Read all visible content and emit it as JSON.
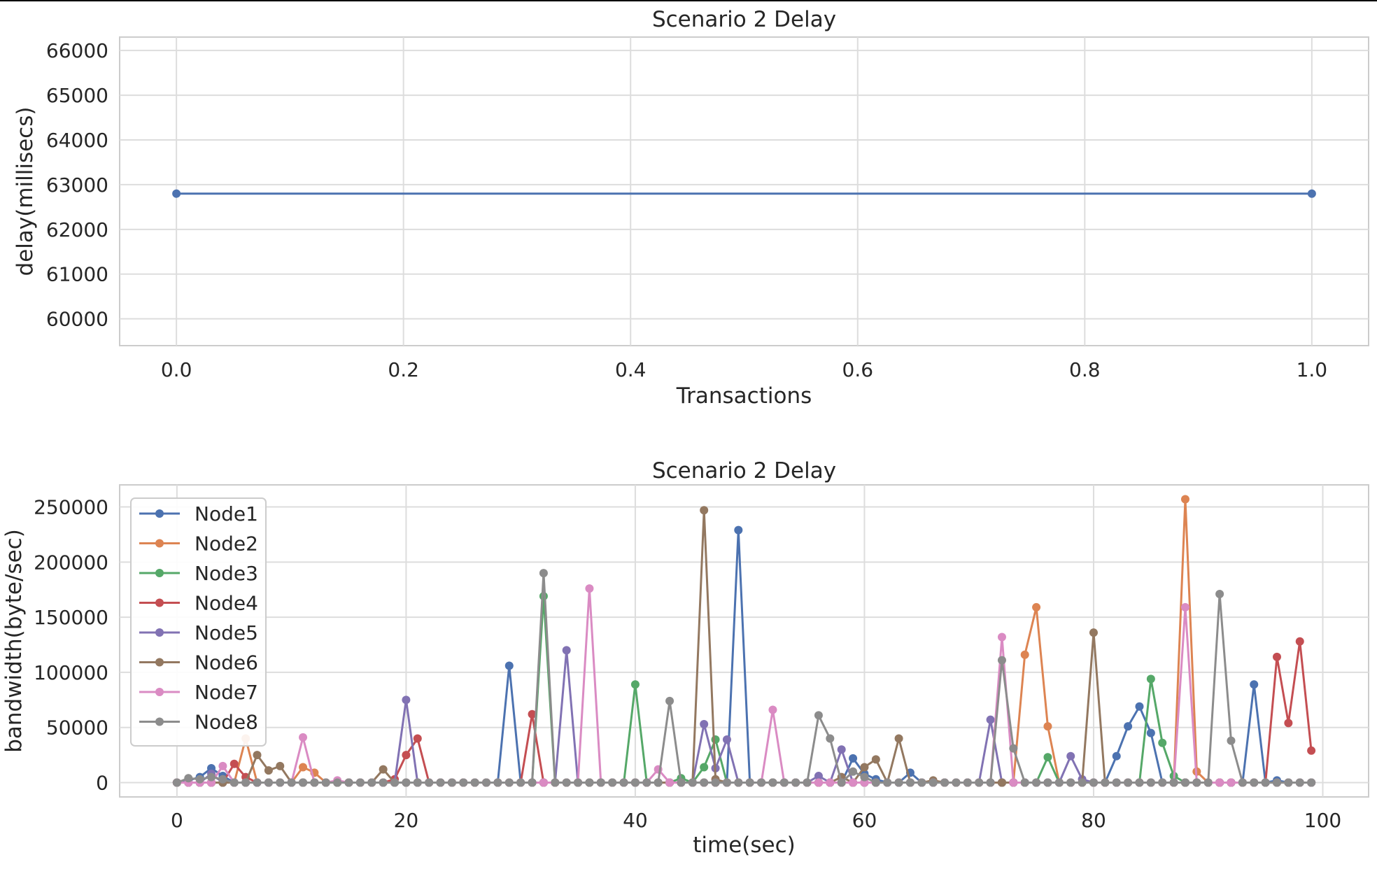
{
  "chart_data": [
    {
      "type": "line",
      "title": "Scenario 2 Delay",
      "xlabel": "Transactions",
      "ylabel": "delay(millisecs)",
      "xlim": [
        -0.05,
        1.05
      ],
      "ylim": [
        59400,
        66300
      ],
      "xticks": [
        0.0,
        0.2,
        0.4,
        0.6,
        0.8,
        1.0
      ],
      "xtick_labels": [
        "0.0",
        "0.2",
        "0.4",
        "0.6",
        "0.8",
        "1.0"
      ],
      "yticks": [
        60000,
        61000,
        62000,
        63000,
        64000,
        65000,
        66000
      ],
      "ytick_labels": [
        "60000",
        "61000",
        "62000",
        "63000",
        "64000",
        "65000",
        "66000"
      ],
      "grid": true,
      "series": [
        {
          "x": [
            0,
            1
          ],
          "values": [
            62800,
            62800
          ],
          "color": "#4c72b0"
        }
      ]
    },
    {
      "type": "line",
      "title": "Scenario 2 Delay",
      "xlabel": "time(sec)",
      "ylabel": "bandwidth(byte/sec)",
      "xlim": [
        -5,
        104
      ],
      "ylim": [
        -13000,
        270000
      ],
      "xticks": [
        0,
        20,
        40,
        60,
        80,
        100
      ],
      "xtick_labels": [
        "0",
        "20",
        "40",
        "60",
        "80",
        "100"
      ],
      "yticks": [
        0,
        50000,
        100000,
        150000,
        200000,
        250000
      ],
      "ytick_labels": [
        "0",
        "50000",
        "100000",
        "150000",
        "200000",
        "250000"
      ],
      "grid": true,
      "legend_position": "top-left",
      "series": [
        {
          "name": "Node1",
          "color": "#4c72b0",
          "peaks": {
            "1": 2000,
            "2": 5000,
            "3": 13000,
            "4": 6000,
            "29": 106000,
            "49": 229000,
            "59": 22000,
            "60": 8000,
            "61": 3000,
            "64": 9000,
            "82": 24000,
            "83": 51000,
            "84": 69000,
            "85": 45000,
            "94": 89000,
            "96": 2000
          }
        },
        {
          "name": "Node2",
          "color": "#dd8452",
          "peaks": {
            "6": 40000,
            "11": 14000,
            "12": 9000,
            "74": 116000,
            "75": 159000,
            "76": 51000,
            "88": 257000,
            "89": 10000
          }
        },
        {
          "name": "Node3",
          "color": "#55a868",
          "peaks": {
            "32": 169000,
            "40": 89000,
            "44": 4000,
            "46": 14000,
            "47": 39000,
            "76": 23000,
            "85": 94000,
            "86": 36000,
            "87": 6000
          }
        },
        {
          "name": "Node4",
          "color": "#c44e52",
          "peaks": {
            "5": 17000,
            "6": 5000,
            "19": 3000,
            "20": 25000,
            "21": 40000,
            "31": 62000,
            "96": 114000,
            "97": 54000,
            "98": 128000,
            "99": 29000
          }
        },
        {
          "name": "Node5",
          "color": "#8172b3",
          "peaks": {
            "3": 8000,
            "20": 75000,
            "34": 120000,
            "46": 53000,
            "47": 13000,
            "48": 39000,
            "56": 6000,
            "58": 30000,
            "71": 57000,
            "78": 24000,
            "79": 3000
          }
        },
        {
          "name": "Node6",
          "color": "#937860",
          "peaks": {
            "7": 25000,
            "8": 11000,
            "9": 15000,
            "18": 12000,
            "46": 247000,
            "47": 3000,
            "58": 5000,
            "60": 14000,
            "61": 21000,
            "63": 40000,
            "66": 2000,
            "80": 136000
          }
        },
        {
          "name": "Node7",
          "color": "#da8bc3",
          "peaks": {
            "4": 15000,
            "11": 41000,
            "14": 2000,
            "36": 176000,
            "42": 12000,
            "52": 66000,
            "72": 132000,
            "88": 159000
          }
        },
        {
          "name": "Node8",
          "color": "#8c8c8c",
          "peaks": {
            "1": 4000,
            "2": 3000,
            "3": 5000,
            "4": 3000,
            "32": 190000,
            "43": 74000,
            "56": 61000,
            "57": 40000,
            "59": 10000,
            "60": 5000,
            "72": 111000,
            "73": 31000,
            "91": 171000,
            "92": 38000
          }
        }
      ],
      "shared_x": {
        "start": 0,
        "end": 99,
        "step": 1
      }
    }
  ]
}
